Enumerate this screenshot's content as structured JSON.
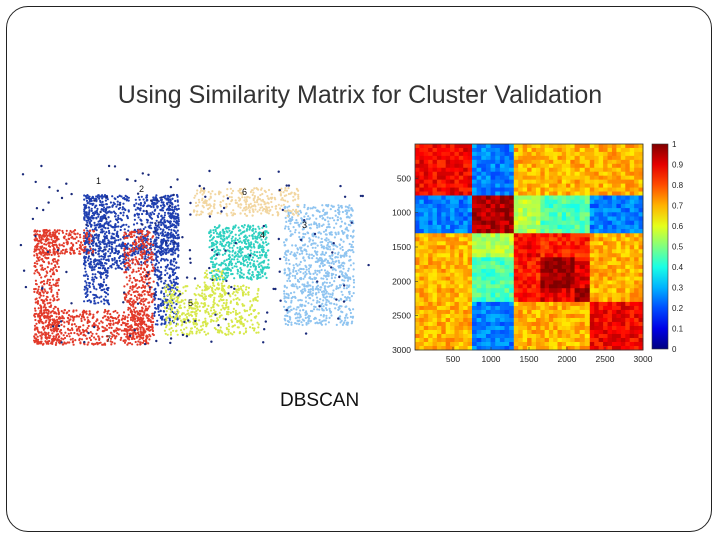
{
  "slide": {
    "title": "Using Similarity Matrix for Cluster Validation",
    "caption": "DBSCAN"
  },
  "chart_data": [
    {
      "type": "scatter",
      "title": "",
      "cluster_labels": [
        "1",
        "2",
        "3",
        "4",
        "5",
        "6",
        "7"
      ],
      "colors": {
        "1": "#1f3fb0",
        "2": "#1f3fb0",
        "3": "#8fc4f0",
        "4": "#2ed0c0",
        "5": "#d7e84a",
        "6": "#f2d6a0",
        "7": "#e23a2a",
        "noise": "#1a2a7a"
      }
    },
    {
      "type": "heatmap",
      "title": "",
      "x_ticks": [
        500,
        1000,
        1500,
        2000,
        2500,
        3000
      ],
      "y_ticks": [
        500,
        1000,
        1500,
        2000,
        2500,
        3000
      ],
      "xlim": [
        0,
        3000
      ],
      "ylim": [
        0,
        3000
      ],
      "colorbar_ticks": [
        "1",
        "0.9",
        "0.8",
        "0.7",
        "0.6",
        "0.5",
        "0.4",
        "0.3",
        "0.2",
        "0.1",
        "0"
      ],
      "colorbar_range": [
        0,
        1
      ],
      "cluster_boundaries": [
        0,
        750,
        1300,
        1650,
        2100,
        2300,
        3000
      ],
      "block_values": [
        [
          0.88,
          0.25,
          0.7,
          0.7,
          0.7,
          0.7
        ],
        [
          0.25,
          0.95,
          0.55,
          0.45,
          0.45,
          0.25
        ],
        [
          0.7,
          0.55,
          0.88,
          0.85,
          0.85,
          0.7
        ],
        [
          0.7,
          0.45,
          0.85,
          0.98,
          0.9,
          0.7
        ],
        [
          0.7,
          0.45,
          0.85,
          0.9,
          0.98,
          0.7
        ],
        [
          0.7,
          0.25,
          0.7,
          0.7,
          0.7,
          0.88
        ]
      ]
    }
  ]
}
